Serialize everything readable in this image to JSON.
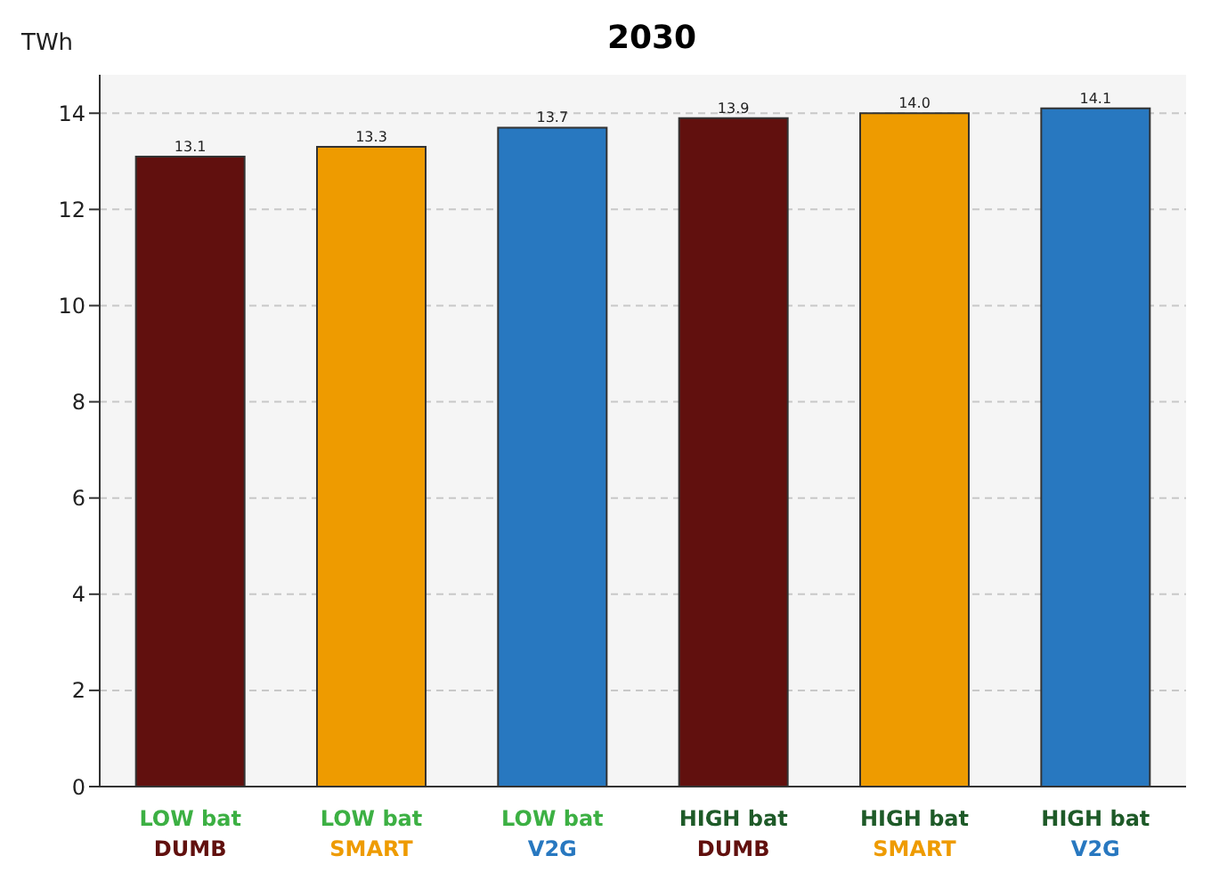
{
  "chart_data": {
    "type": "bar",
    "title": "2030",
    "ylabel": "TWh",
    "categories": [
      "LOW bat\nDUMB",
      "LOW bat\nSMART",
      "LOW bat\nV2G",
      "HIGH bat\nDUMB",
      "HIGH bat\nSMART",
      "HIGH bat\nV2G"
    ],
    "values": [
      13.1,
      13.3,
      13.7,
      13.9,
      14.0,
      14.1
    ],
    "value_labels": [
      "13.1",
      "13.3",
      "13.7",
      "13.9",
      "14.0",
      "14.1"
    ],
    "colors": [
      "#61100e",
      "#ee9b00",
      "#2878c0",
      "#61100e",
      "#ee9b00",
      "#2878c0"
    ],
    "ylim": [
      0,
      14.8
    ],
    "yticks": [
      0,
      2,
      4,
      6,
      8,
      10,
      12,
      14
    ],
    "grid": "y"
  }
}
